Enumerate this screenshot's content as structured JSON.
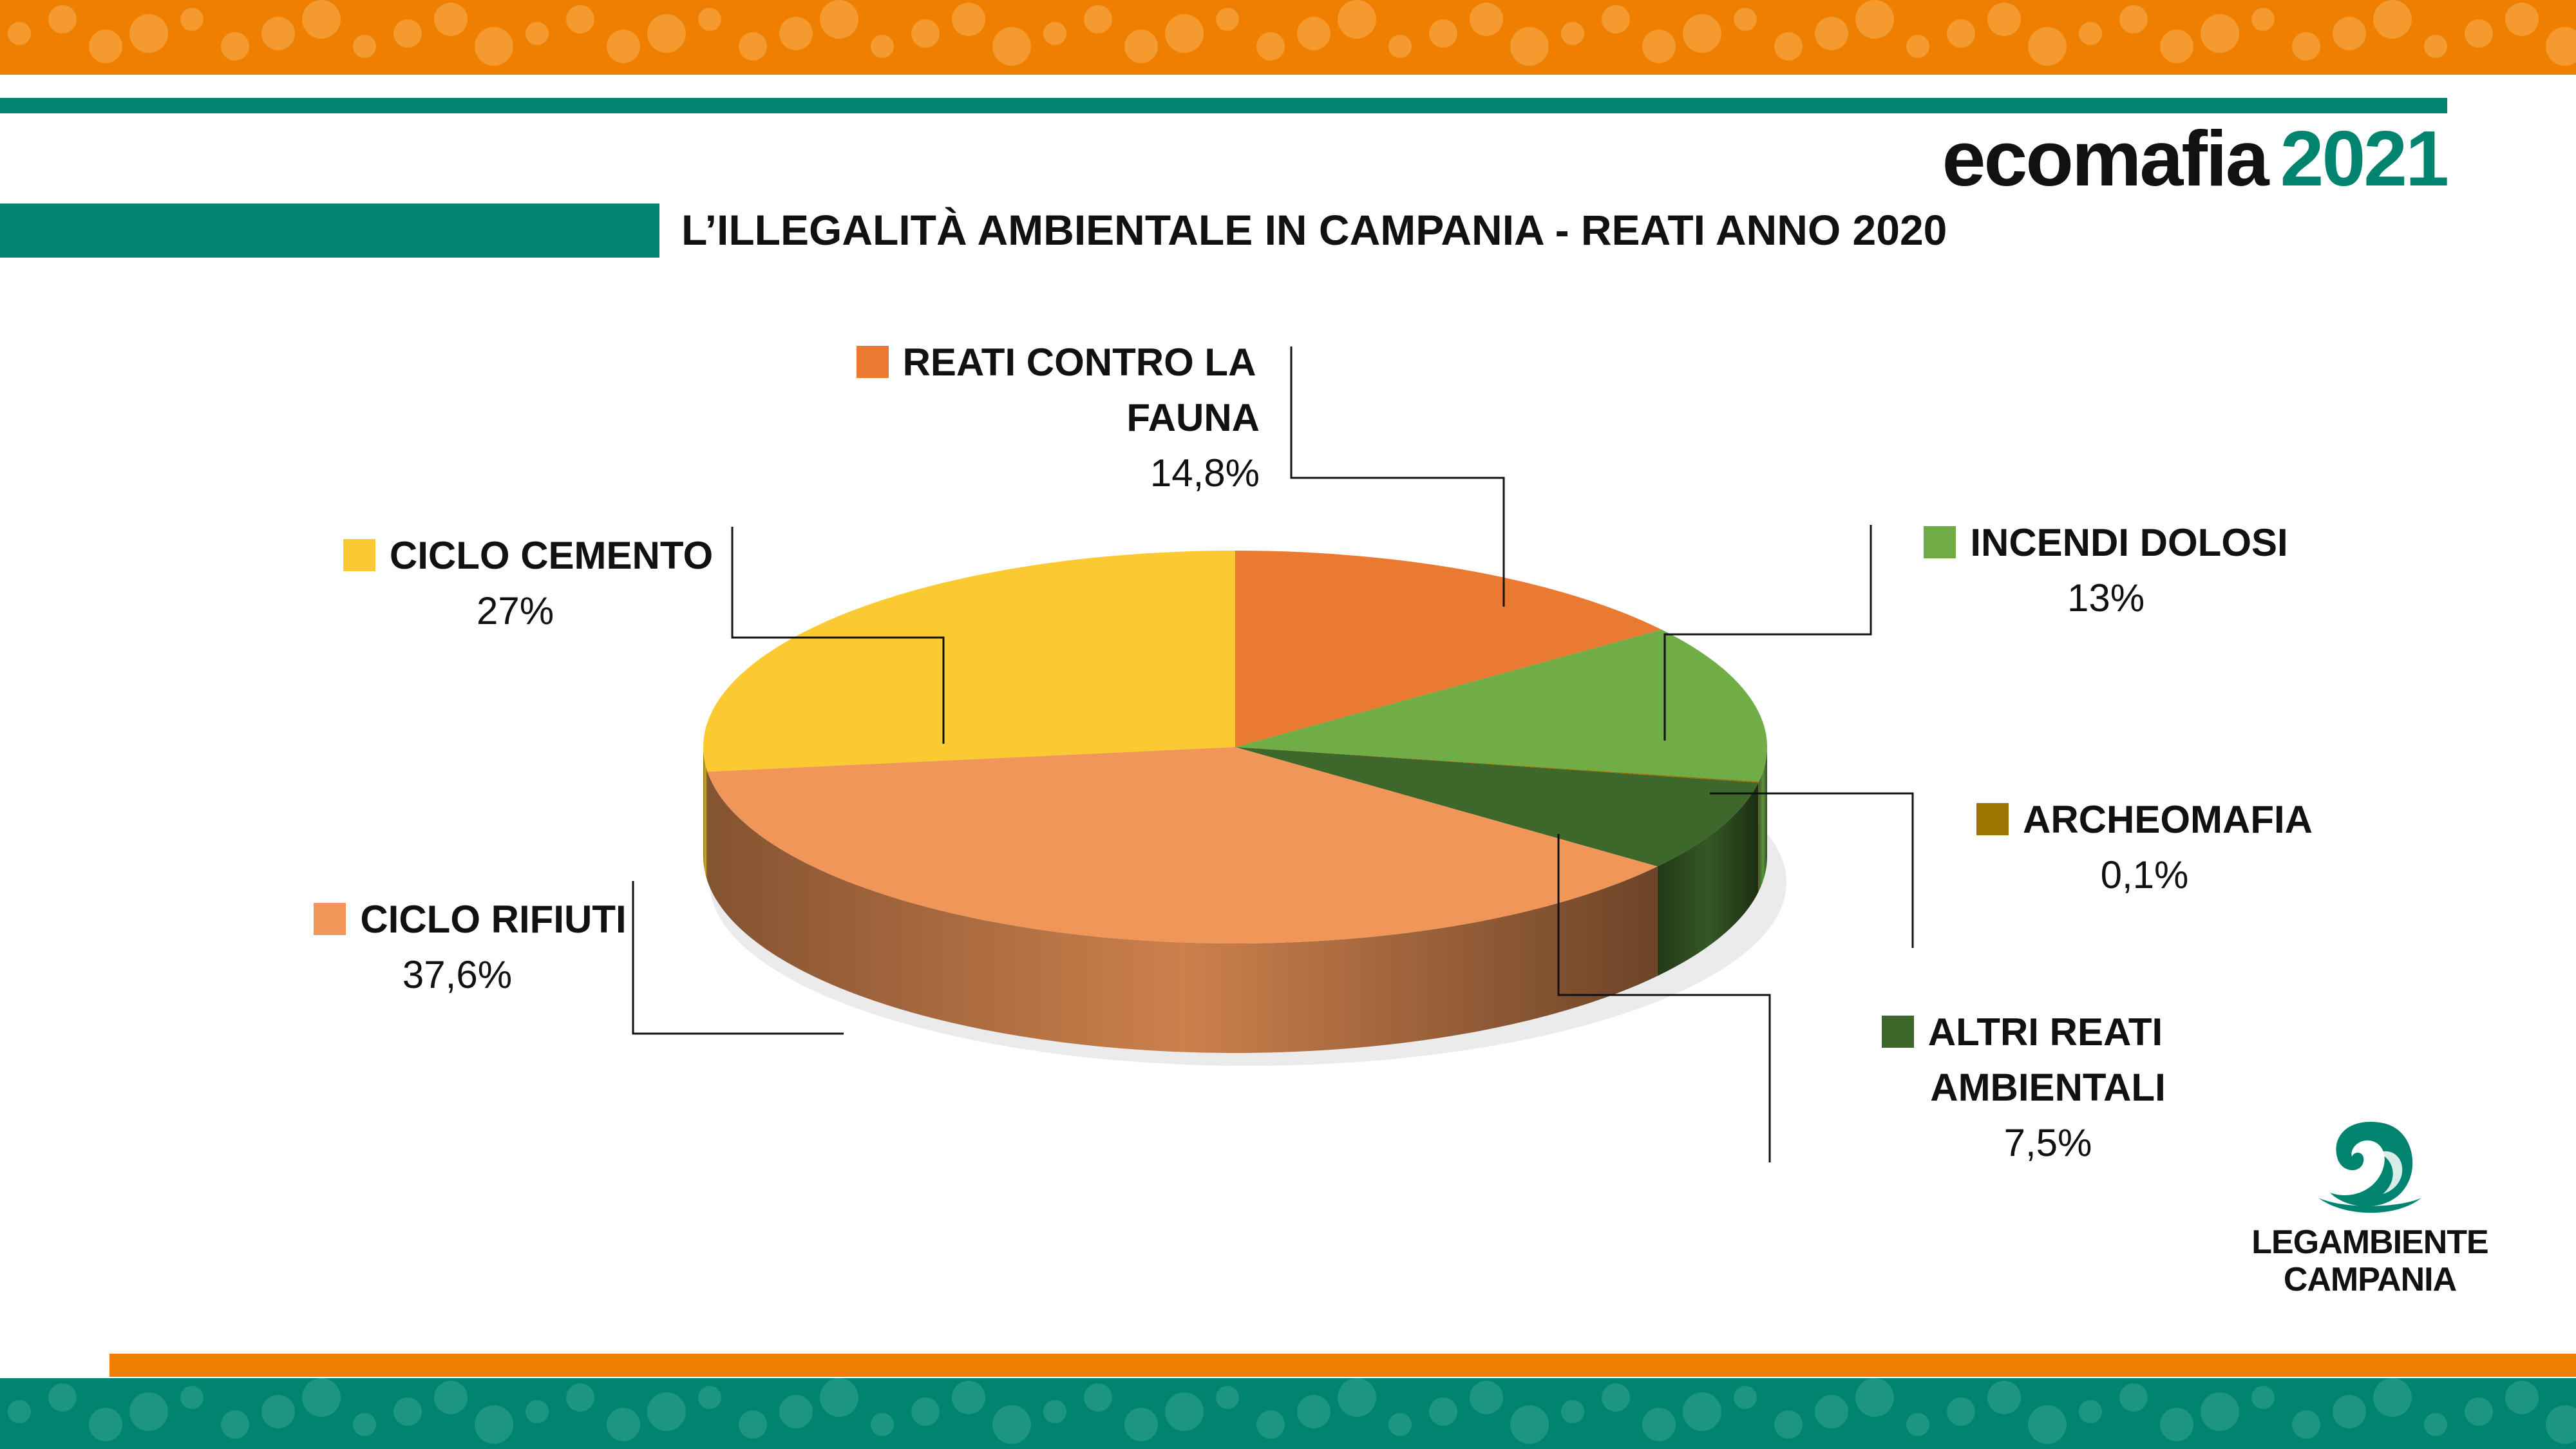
{
  "header": {
    "logo_word": "ecomafia",
    "logo_year": "2021"
  },
  "colors": {
    "orange_band": "#ee7f00",
    "teal": "#00836f"
  },
  "chart_data": {
    "type": "pie",
    "title": "L’ILLEGALITÀ AMBIENTALE IN CAMPANIA - REATI ANNO 2020",
    "style": "3d",
    "legend": "labels-with-leader-lines",
    "slices": [
      {
        "name": "REATI CONTRO LA FAUNA",
        "value": 14.8,
        "label": "14,8%",
        "color": "#ea7a31"
      },
      {
        "name": "INCENDI DOLOSI",
        "value": 13,
        "label": "13%",
        "color": "#70ad47"
      },
      {
        "name": "ARCHEOMAFIA",
        "value": 0.1,
        "label": "0,1%",
        "color": "#9c7400"
      },
      {
        "name": "ALTRI REATI AMBIENTALI",
        "value": 7.5,
        "label": "7,5%",
        "color": "#3e672b"
      },
      {
        "name": "CICLO RIFIUTI",
        "value": 37.6,
        "label": "37,6%",
        "color": "#f09659"
      },
      {
        "name": "CICLO CEMENTO",
        "value": 27,
        "label": "27%",
        "color": "#fbc932"
      }
    ],
    "label_lines": [
      [
        "REATI CONTRO LA",
        "FAUNA"
      ],
      [
        "INCENDI DOLOSI"
      ],
      [
        "ARCHEOMAFIA"
      ],
      [
        "ALTRI REATI",
        "AMBIENTALI"
      ],
      [
        "CICLO RIFIUTI"
      ],
      [
        "CICLO CEMENTO"
      ]
    ]
  },
  "brand": {
    "name_line1": "LEGAMBIENTE",
    "name_line2": "CAMPANIA"
  }
}
